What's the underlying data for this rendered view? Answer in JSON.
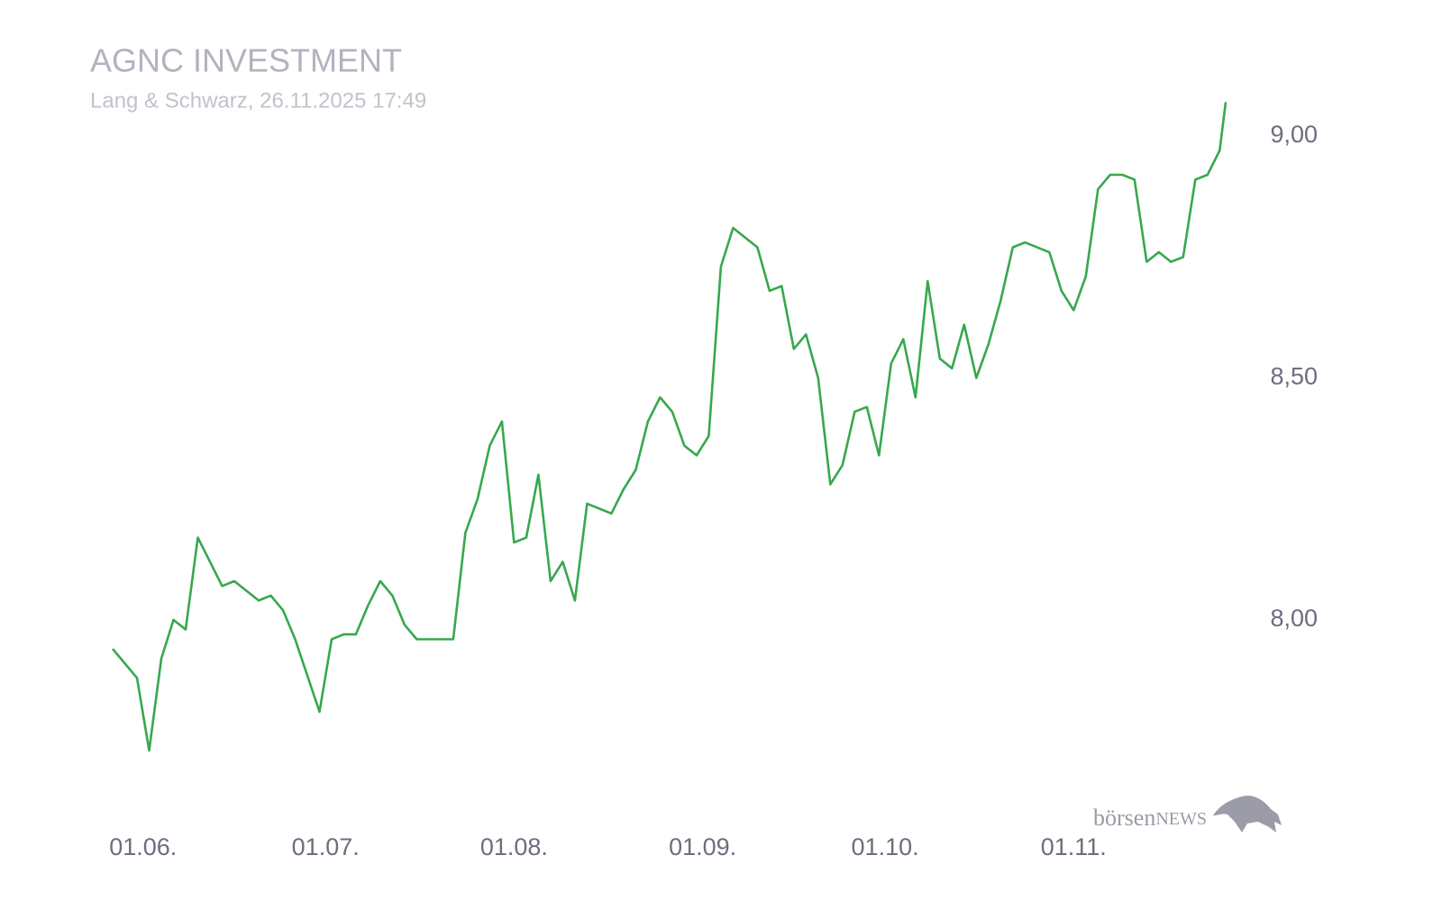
{
  "chart_data": {
    "type": "line",
    "title": "AGNC INVESTMENT",
    "subtitle": "Lang & Schwarz, 26.11.2025 17:49",
    "watermark": [
      "börsen",
      "NEWS"
    ],
    "x": [
      "27.05.",
      "31.05.",
      "02.06.",
      "04.06.",
      "06.06.",
      "08.06.",
      "10.06.",
      "14.06.",
      "16.06.",
      "20.06.",
      "22.06.",
      "24.06.",
      "26.06.",
      "30.06.",
      "02.07.",
      "04.07.",
      "06.07.",
      "08.07.",
      "10.07.",
      "12.07.",
      "14.07.",
      "16.07.",
      "22.07.",
      "24.07.",
      "26.07.",
      "28.07.",
      "30.07.",
      "01.08.",
      "03.08.",
      "05.08.",
      "07.08.",
      "09.08.",
      "11.08.",
      "13.08.",
      "17.08.",
      "19.08.",
      "21.08.",
      "23.08.",
      "25.08.",
      "27.08.",
      "29.08.",
      "31.08.",
      "02.09.",
      "04.09.",
      "06.09.",
      "10.09.",
      "12.09.",
      "14.09.",
      "16.09.",
      "18.09.",
      "20.09.",
      "22.09.",
      "24.09.",
      "26.09.",
      "28.09.",
      "30.09.",
      "02.10.",
      "04.10.",
      "06.10.",
      "08.10.",
      "10.10.",
      "12.10.",
      "14.10.",
      "16.10.",
      "18.10.",
      "20.10.",
      "22.10.",
      "24.10.",
      "28.10.",
      "30.10.",
      "01.11.",
      "03.11.",
      "05.11.",
      "07.11.",
      "09.11.",
      "11.11.",
      "13.11.",
      "15.11.",
      "17.11.",
      "19.11.",
      "21.11.",
      "23.11.",
      "25.11.",
      "26.11."
    ],
    "series": [
      {
        "name": "AGNC INVESTMENT",
        "color": "#37a84d",
        "values": [
          7.94,
          7.88,
          7.73,
          7.92,
          8.0,
          7.98,
          8.17,
          8.07,
          8.08,
          8.04,
          8.05,
          8.02,
          7.96,
          7.81,
          7.96,
          7.97,
          7.97,
          8.03,
          8.08,
          8.05,
          7.99,
          7.96,
          7.96,
          8.18,
          8.25,
          8.36,
          8.41,
          8.16,
          8.17,
          8.3,
          8.08,
          8.12,
          8.04,
          8.24,
          8.22,
          8.27,
          8.31,
          8.41,
          8.46,
          8.43,
          8.36,
          8.34,
          8.38,
          8.73,
          8.81,
          8.77,
          8.68,
          8.69,
          8.56,
          8.59,
          8.5,
          8.28,
          8.32,
          8.43,
          8.44,
          8.34,
          8.53,
          8.58,
          8.46,
          8.7,
          8.54,
          8.52,
          8.61,
          8.5,
          8.57,
          8.66,
          8.77,
          8.78,
          8.76,
          8.68,
          8.64,
          8.71,
          8.89,
          8.92,
          8.92,
          8.91,
          8.74,
          8.76,
          8.74,
          8.75,
          8.91,
          8.92,
          8.97,
          9.07
        ]
      }
    ],
    "xlim": [
      "27.05.",
      "26.11."
    ],
    "xticks": [
      "01.06.",
      "01.07.",
      "01.08.",
      "01.09.",
      "01.10.",
      "01.11."
    ],
    "ylim": [
      7.7,
      9.1
    ],
    "yticks": [
      {
        "value": 8,
        "label": "8,00"
      },
      {
        "value": 8.5,
        "label": "8,50"
      },
      {
        "value": 9,
        "label": "9,00"
      }
    ],
    "grid": false
  }
}
